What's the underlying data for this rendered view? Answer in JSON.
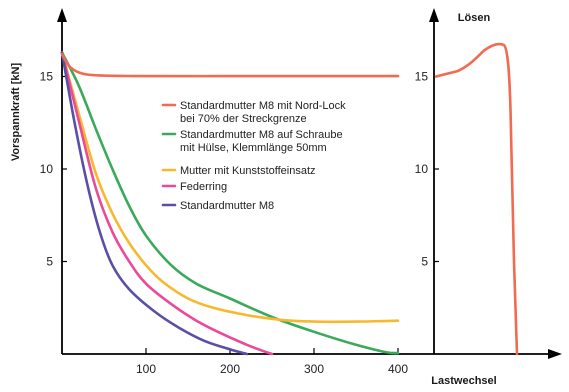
{
  "chart_data": {
    "type": "line",
    "ylabel": "Vorspannkraft  [kN]",
    "xlabel": "Lastwechsel",
    "right_panel_title": "Lösen",
    "x_ticks": [
      100,
      200,
      300,
      400
    ],
    "y_ticks": [
      5,
      10,
      15
    ],
    "right_y_ticks": [
      5,
      10,
      15
    ],
    "xlim": [
      0,
      410
    ],
    "ylim": [
      0,
      18
    ],
    "legend_position": "center",
    "series": [
      {
        "name": "Standardmutter M8 mit Nord-Lock\nbei 70% der Streckgrenze",
        "color": "#f26a4f",
        "points": [
          [
            0,
            16.2
          ],
          [
            10,
            15.5
          ],
          [
            25,
            15.15
          ],
          [
            50,
            15.05
          ],
          [
            100,
            15.02
          ],
          [
            200,
            15.02
          ],
          [
            300,
            15.02
          ],
          [
            400,
            15.02
          ]
        ]
      },
      {
        "name": "Standardmutter M8 auf Schraube\nmit Hülse, Klemmlänge 50mm",
        "color": "#3aaa5a",
        "points": [
          [
            0,
            16.3
          ],
          [
            20,
            14.5
          ],
          [
            40,
            12.2
          ],
          [
            60,
            10.0
          ],
          [
            80,
            8.0
          ],
          [
            100,
            6.4
          ],
          [
            130,
            4.8
          ],
          [
            160,
            3.8
          ],
          [
            200,
            3.0
          ],
          [
            250,
            2.0
          ],
          [
            300,
            1.2
          ],
          [
            350,
            0.5
          ],
          [
            385,
            0.1
          ],
          [
            400,
            0.05
          ]
        ]
      },
      {
        "name": "Mutter mit Kunststoffeinsatz",
        "color": "#f8b82e",
        "points": [
          [
            0,
            16.3
          ],
          [
            20,
            13.0
          ],
          [
            40,
            9.8
          ],
          [
            60,
            7.6
          ],
          [
            80,
            6.0
          ],
          [
            100,
            4.8
          ],
          [
            120,
            3.9
          ],
          [
            150,
            3.0
          ],
          [
            180,
            2.5
          ],
          [
            220,
            2.1
          ],
          [
            260,
            1.85
          ],
          [
            300,
            1.75
          ],
          [
            350,
            1.75
          ],
          [
            400,
            1.8
          ]
        ]
      },
      {
        "name": "Federring",
        "color": "#ea4a98",
        "points": [
          [
            0,
            16.3
          ],
          [
            20,
            12.6
          ],
          [
            40,
            9.0
          ],
          [
            60,
            6.6
          ],
          [
            80,
            5.0
          ],
          [
            100,
            3.8
          ],
          [
            130,
            2.7
          ],
          [
            160,
            1.8
          ],
          [
            190,
            1.1
          ],
          [
            220,
            0.5
          ],
          [
            240,
            0.15
          ],
          [
            250,
            0.0
          ]
        ]
      },
      {
        "name": "Standardmutter M8",
        "color": "#5a4fa6",
        "points": [
          [
            0,
            16.3
          ],
          [
            15,
            12.5
          ],
          [
            30,
            9.2
          ],
          [
            45,
            6.6
          ],
          [
            60,
            4.8
          ],
          [
            80,
            3.5
          ],
          [
            110,
            2.3
          ],
          [
            140,
            1.4
          ],
          [
            170,
            0.7
          ],
          [
            200,
            0.25
          ],
          [
            220,
            0.0
          ]
        ]
      }
    ],
    "right_panel_series": {
      "name": "Standardmutter M8 mit Nord-Lock\nbei 70% der Streckgrenze",
      "color": "#f26a4f"
    }
  }
}
